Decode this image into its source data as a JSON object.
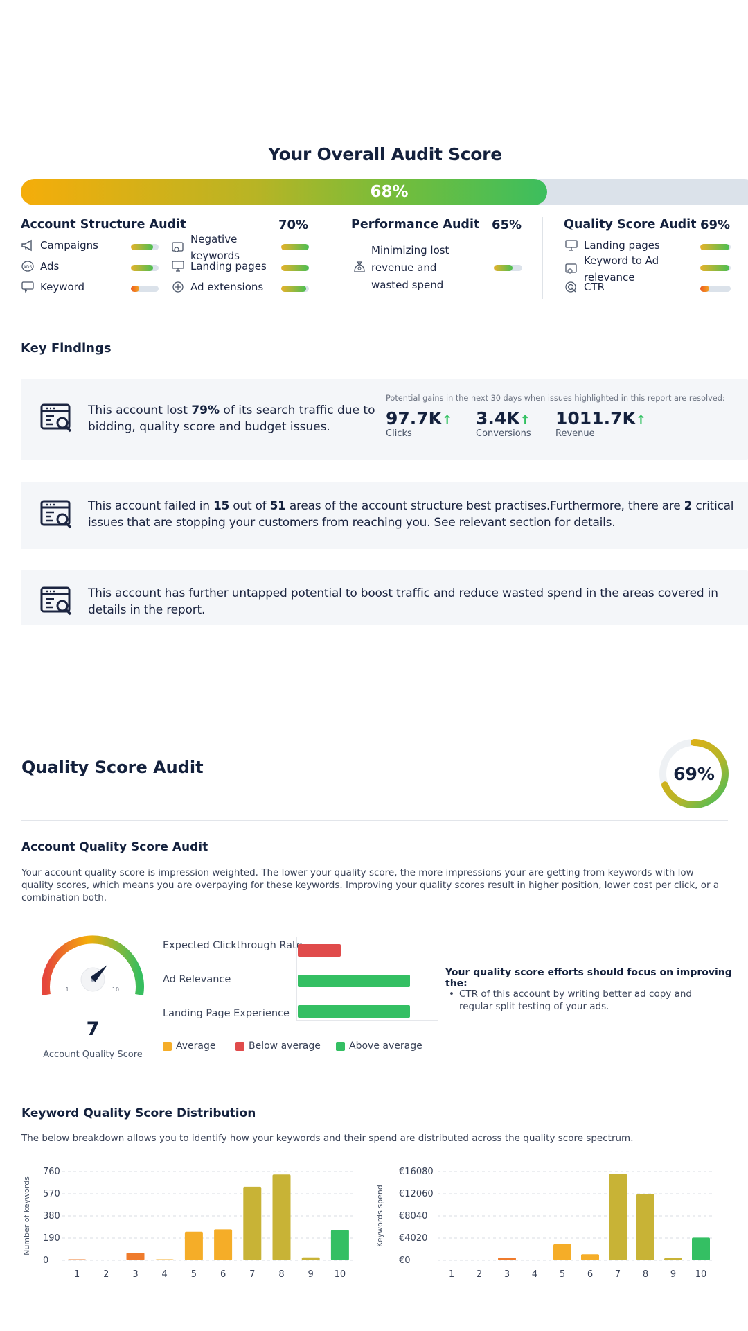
{
  "overall": {
    "title": "Your Overall Audit Score",
    "percent": 68,
    "label": "68%"
  },
  "categories": {
    "structure": {
      "title": "Account Structure Audit",
      "pct": "70%",
      "items": [
        {
          "label": "Campaigns",
          "score": 0.8
        },
        {
          "label": "Ads",
          "score": 0.8
        },
        {
          "label": "Keyword",
          "score": 0.3,
          "low": true
        },
        {
          "label": "Negative keywords",
          "score": 1.0
        },
        {
          "label": "Landing pages",
          "score": 1.0
        },
        {
          "label": "Ad extensions",
          "score": 0.9
        }
      ]
    },
    "performance": {
      "title": "Performance Audit",
      "pct": "65%",
      "item": {
        "line1": "Minimizing lost",
        "line2": "revenue and",
        "line3": "wasted spend",
        "score": 0.65
      }
    },
    "quality": {
      "title": "Quality Score Audit",
      "pct": "69%",
      "items": [
        {
          "label": "Landing pages",
          "score": 0.95
        },
        {
          "label": "Keyword to Ad relevance",
          "score": 0.95
        },
        {
          "label": "CTR",
          "score": 0.3,
          "low": true
        }
      ]
    }
  },
  "findings": {
    "title": "Key Findings",
    "card1": {
      "pre": "This account lost ",
      "bold": "79%",
      "post": " of its search traffic due to bidding, quality score and budget issues.",
      "gains_note": "Potential gains in the next 30 days when issues highlighted in this report are resolved:",
      "gains": [
        {
          "value": "97.7K",
          "label": "Clicks"
        },
        {
          "value": "3.4K",
          "label": "Conversions"
        },
        {
          "value": "1011.7K",
          "label": "Revenue"
        }
      ]
    },
    "card2": {
      "t1": "This account failed in ",
      "b1": "15",
      "t2": " out of ",
      "b2": "51",
      "t3": " areas of the account structure best practises.Furthermore, there are ",
      "b3": "2",
      "t4": " critical issues that are stopping your customers from reaching you. See relevant section for details."
    },
    "card3": {
      "text": "This account has further untapped potential to boost traffic and reduce wasted spend in the areas covered in details in the report."
    }
  },
  "quality_audit": {
    "title": "Quality Score Audit",
    "percent": 69,
    "label": "69%",
    "account_title": "Account Quality Score Audit",
    "account_desc": "Your account quality score is impression weighted. The lower your quality score, the more impressions your are getting from keywords with low quality scores, which means you are overpaying for these keywords. Improving your quality scores result in higher position, lower cost per click, or a combination both.",
    "gauge": {
      "value": "7",
      "label": "Account Quality Score",
      "min": "1",
      "max": "10",
      "level": 7
    },
    "bars": [
      {
        "label": "Expected Clickthrough Rate",
        "status": "below",
        "level": 0.38
      },
      {
        "label": "Ad Relevance",
        "status": "above",
        "level": 1.0
      },
      {
        "label": "Landing Page Experience",
        "status": "above",
        "level": 1.0
      }
    ],
    "legend": {
      "average": "Average",
      "below": "Below average",
      "above": "Above average"
    },
    "colors": {
      "average": "#f5ad28",
      "below": "#e04b4b",
      "above": "#34bf63",
      "olive": "#c8b336",
      "orange": "#ef7b2c"
    },
    "focus_title": "Your quality score efforts should focus on improving the:",
    "focus_items": [
      "CTR of this account by writing better ad copy and regular split testing of your ads."
    ]
  },
  "distribution": {
    "title": "Keyword Quality Score Distribution",
    "desc": "The below breakdown allows you to identify how your keywords and their spend are distributed across the quality score spectrum."
  },
  "chart_data": [
    {
      "type": "bar",
      "ylabel": "Number of keywords",
      "categories": [
        "1",
        "2",
        "3",
        "4",
        "5",
        "6",
        "7",
        "8",
        "9",
        "10"
      ],
      "values": [
        5,
        0,
        65,
        5,
        245,
        265,
        630,
        735,
        25,
        260
      ],
      "colors": [
        "#ef7b2c",
        "#ef7b2c",
        "#ef7b2c",
        "#f5ad28",
        "#f5ad28",
        "#f5ad28",
        "#c8b336",
        "#c8b336",
        "#c8b336",
        "#34bf63"
      ],
      "ylim": [
        0,
        760
      ],
      "yticks": [
        0,
        190,
        380,
        570,
        760
      ],
      "ytick_labels": [
        "0",
        "190",
        "380",
        "570",
        "760"
      ]
    },
    {
      "type": "bar",
      "ylabel": "Keywords spend",
      "categories": [
        "1",
        "2",
        "3",
        "4",
        "5",
        "6",
        "7",
        "8",
        "9",
        "10"
      ],
      "values": [
        0,
        0,
        500,
        0,
        2900,
        1100,
        15700,
        12000,
        400,
        4100
      ],
      "colors": [
        "#ef7b2c",
        "#ef7b2c",
        "#ef7b2c",
        "#f5ad28",
        "#f5ad28",
        "#f5ad28",
        "#c8b336",
        "#c8b336",
        "#c8b336",
        "#34bf63"
      ],
      "ylim": [
        0,
        16080
      ],
      "yticks": [
        0,
        4020,
        8040,
        12060,
        16080
      ],
      "ytick_labels": [
        "€0",
        "€4020",
        "€8040",
        "€12060",
        "€16080"
      ]
    }
  ]
}
